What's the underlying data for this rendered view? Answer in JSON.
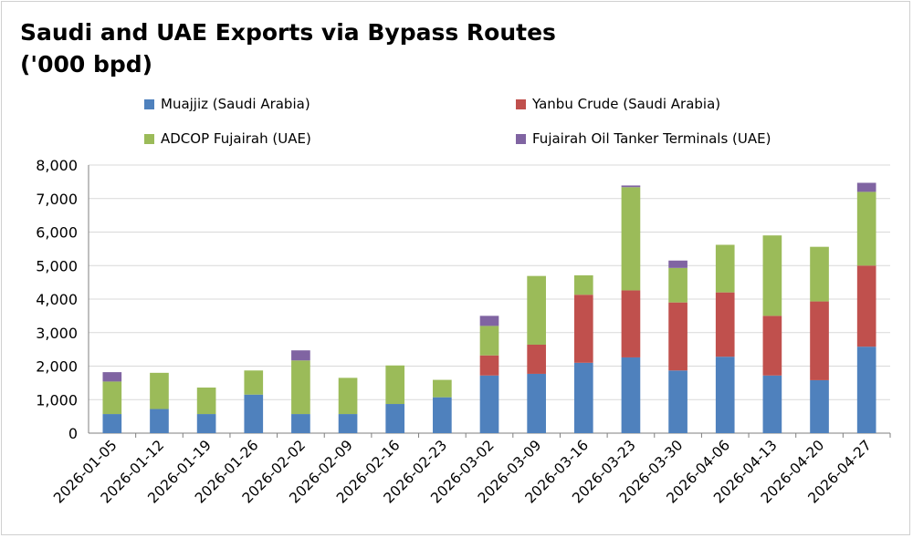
{
  "chart_data": {
    "type": "bar",
    "stacked": true,
    "title": "Saudi and UAE Exports via Bypass Routes",
    "subtitle": "('000 bpd)",
    "xlabel": "",
    "ylabel": "",
    "ylim": [
      0,
      8000
    ],
    "yticks": [
      "0",
      "1,000",
      "2,000",
      "3,000",
      "4,000",
      "5,000",
      "6,000",
      "7,000",
      "8,000"
    ],
    "grid": true,
    "legend_position": "top",
    "categories": [
      "2026-01-05",
      "2026-01-12",
      "2026-01-19",
      "2026-01-26",
      "2026-02-02",
      "2026-02-09",
      "2026-02-16",
      "2026-02-23",
      "2026-03-02",
      "2026-03-09",
      "2026-03-16",
      "2026-03-23",
      "2026-03-30",
      "2026-04-06",
      "2026-04-13",
      "2026-04-20",
      "2026-04-27"
    ],
    "series": [
      {
        "name": "Muajjiz (Saudi Arabia)",
        "color": "#4f81bd",
        "values": [
          570,
          720,
          570,
          1150,
          570,
          570,
          870,
          1070,
          1720,
          1770,
          2100,
          2260,
          1870,
          2280,
          1720,
          1580,
          2580
        ]
      },
      {
        "name": "Yanbu Crude (Saudi Arabia)",
        "color": "#c0504d",
        "values": [
          0,
          0,
          0,
          0,
          0,
          0,
          0,
          0,
          600,
          870,
          2030,
          2000,
          2030,
          1920,
          1780,
          2350,
          2420
        ]
      },
      {
        "name": "ADCOP Fujairah (UAE)",
        "color": "#9bbb59",
        "values": [
          970,
          1080,
          790,
          720,
          1600,
          1080,
          1150,
          520,
          880,
          2050,
          580,
          3080,
          1030,
          1420,
          2400,
          1630,
          2200
        ]
      },
      {
        "name": "Fujairah Oil Tanker Terminals (UAE)",
        "color": "#8064a2",
        "values": [
          280,
          0,
          0,
          0,
          300,
          0,
          0,
          0,
          300,
          0,
          0,
          50,
          220,
          0,
          0,
          0,
          270
        ]
      }
    ]
  }
}
